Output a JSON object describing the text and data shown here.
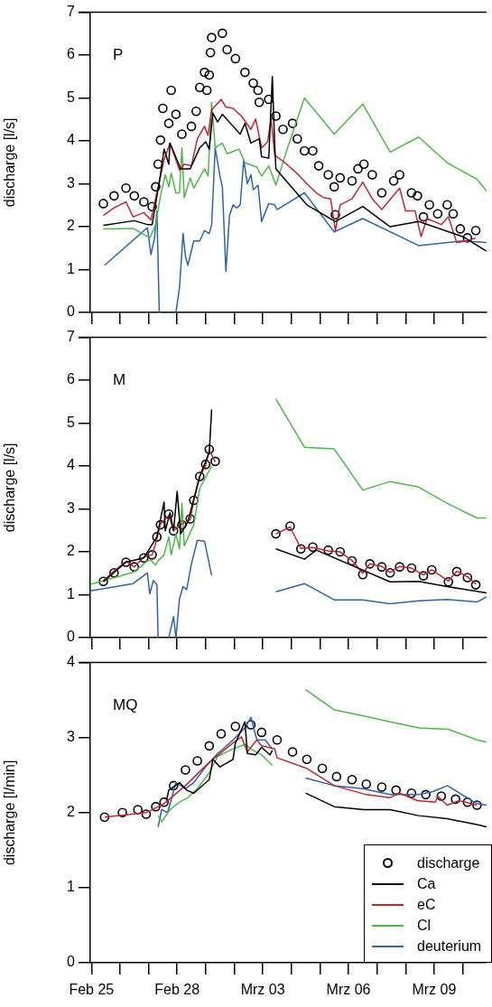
{
  "chart_data": [
    {
      "type": "line",
      "ylabel": "discharge [l/s]",
      "annotations": [
        "P"
      ],
      "xlim": [
        "--02-24T23:00",
        "--03-10T20:00"
      ],
      "ylim": [
        0,
        7
      ],
      "yticks": [
        0,
        1,
        2,
        3,
        4,
        5,
        6,
        7
      ],
      "tick_labels": "y",
      "xticks": [
        {
          "value": "--02-25",
          "label": null
        },
        {
          "value": "--02-26",
          "label": null
        },
        {
          "value": "--02-27",
          "label": null
        },
        {
          "value": "--02-28",
          "label": null
        },
        {
          "value": "--03-01",
          "label": null
        },
        {
          "value": "--03-02",
          "label": null
        },
        {
          "value": "--03-03",
          "label": null
        },
        {
          "value": "--03-04",
          "label": null
        },
        {
          "value": "--03-05",
          "label": null
        },
        {
          "value": "--03-06",
          "label": null
        },
        {
          "value": "--03-07",
          "label": null
        },
        {
          "value": "--03-08",
          "label": null
        },
        {
          "value": "--03-09",
          "label": null
        },
        {
          "value": "--03-10",
          "label": null
        }
      ],
      "series": [
        {
          "type": "scatter",
          "marker": "circle",
          "color": "#000000",
          "x": [
            "--02-25T10:00",
            "--02-25T19:00",
            "--02-26T05:00",
            "--02-26T12:00",
            "--02-26T20:00",
            "--02-27T03:00",
            "--02-27T06:00",
            "--02-27T08:00",
            "--02-27T10:00",
            "--02-27T12:00",
            "--02-27T17:00",
            "--02-27T19:00",
            "--02-27T23:00",
            "--02-28T04:00",
            "--02-28T12:00",
            "--02-28T16:00",
            "--02-28T19:00",
            "--02-28T23:00",
            "--03-01T01:00",
            "--03-01T03:00",
            "--03-01T04:00",
            "--03-01T05:00",
            "--03-01T14:00",
            "--03-01T18:00",
            "--03-02T01:00",
            "--03-02T09:00",
            "--03-02T16:00",
            "--03-02T20:00",
            "--03-02T21:00",
            "--03-03T05:00",
            "--03-03T11:00",
            "--03-03T17:00",
            "--03-04T01:00",
            "--03-04T05:00",
            "--03-04T11:00",
            "--03-04T18:00",
            "--03-04T23:00",
            "--03-05T07:00",
            "--03-05T12:00",
            "--03-05T13:00",
            "--03-05T17:00",
            "--03-06T03:00",
            "--03-06T08:00",
            "--03-06T13:00",
            "--03-06T20:00",
            "--03-07T04:00",
            "--03-07T14:00",
            "--03-07T19:00",
            "--03-08T05:00",
            "--03-08T10:00",
            "--03-08T15:00",
            "--03-08T20:00",
            "--03-09T03:00",
            "--03-09T11:00",
            "--03-09T16:00",
            "--03-09T22:00",
            "--03-10T04:00",
            "--03-10T11:00"
          ],
          "values": [
            2.54,
            2.72,
            2.9,
            2.72,
            2.58,
            2.47,
            2.93,
            3.46,
            4.02,
            4.76,
            4.41,
            5.18,
            4.62,
            4.16,
            4.34,
            4.69,
            5.25,
            5.6,
            5.18,
            5.54,
            6.06,
            6.41,
            6.51,
            6.13,
            5.92,
            5.6,
            5.35,
            5.18,
            4.9,
            4.97,
            4.58,
            4.27,
            4.41,
            4.05,
            3.77,
            3.77,
            3.42,
            3.21,
            2.93,
            2.28,
            3.14,
            3.07,
            3.35,
            3.46,
            3.21,
            2.79,
            3.07,
            3.21,
            2.79,
            2.72,
            2.23,
            2.51,
            2.3,
            2.51,
            2.3,
            1.95,
            1.74,
            1.91
          ]
        },
        {
          "color": "#000000",
          "x": [
            "--02-25T10:00",
            "--02-26T12:00",
            "--02-26T23:00",
            "--02-27T03:00",
            "--02-27T10:00",
            "--02-27T13:00",
            "--02-27T17:00",
            "--02-27T18:00",
            "--02-28T03:00",
            "--02-28T11:00",
            "--02-28T19:00",
            "--03-01T00:00",
            "--03-01T03:00",
            "--03-01T06:00",
            "--03-01T10:00",
            "--03-01T14:00",
            "--03-02T05:00",
            "--03-02T09:00",
            "--03-02T14:00",
            "--03-02T21:00",
            "--03-02T23:00",
            "--03-03T05:00",
            "--03-03T08:00",
            "--03-03T10:00",
            "--03-03T11:00",
            "--03-04T13:00",
            "--03-05T13:00",
            "--03-06T12:00",
            "--03-07T11:00",
            "--03-08T11:00",
            "--03-10T00:00",
            "--03-10T20:00"
          ],
          "values": [
            2.03,
            2.14,
            2.05,
            2.05,
            3.21,
            3.81,
            3.46,
            3.95,
            3.35,
            3.35,
            3.84,
            3.98,
            3.81,
            4.65,
            4.44,
            4.62,
            4.16,
            4.41,
            3.95,
            4.05,
            3.63,
            3.6,
            5.5,
            3.91,
            3.35,
            2.51,
            2.12,
            2.47,
            2.0,
            2.12,
            1.77,
            1.43
          ]
        },
        {
          "color": "#c1272d",
          "x": [
            "--02-25T10:00",
            "--02-25T19:00",
            "--02-26T05:00",
            "--02-26T11:00",
            "--02-26T20:00",
            "--02-27T02:00",
            "--02-27T07:00",
            "--02-27T13:00",
            "--02-27T18:00",
            "--02-28T02:00",
            "--02-28T06:00",
            "--02-28T12:00",
            "--02-28T17:00",
            "--02-28T23:00",
            "--03-01T02:00",
            "--03-01T05:00",
            "--03-01T13:00",
            "--03-01T17:00",
            "--03-01T23:00",
            "--03-02T06:00",
            "--03-02T14:00",
            "--03-02T18:00",
            "--03-02T23:00",
            "--03-03T04:00",
            "--03-03T07:00",
            "--03-03T10:00",
            "--03-03T20:00",
            "--03-04T06:00",
            "--03-04T13:00",
            "--03-04T21:00",
            "--03-05T03:00",
            "--03-05T09:00",
            "--03-05T13:00",
            "--03-05T17:00",
            "--03-06T03:00",
            "--03-06T12:00",
            "--03-06T20:00",
            "--03-07T04:00",
            "--03-07T19:00",
            "--03-08T00:00",
            "--03-08T08:00",
            "--03-08T13:00",
            "--03-08T18:00",
            "--03-09T06:00",
            "--03-09T12:00",
            "--03-09T19:00",
            "--03-10T04:00",
            "--03-10T11:00"
          ],
          "values": [
            2.26,
            2.44,
            2.58,
            2.23,
            2.33,
            2.16,
            2.79,
            3.56,
            3.95,
            3.32,
            3.46,
            3.42,
            4.05,
            4.34,
            4.13,
            4.72,
            4.97,
            4.79,
            4.76,
            4.58,
            4.27,
            4.51,
            3.84,
            3.98,
            4.51,
            3.67,
            3.46,
            3.21,
            3.0,
            2.79,
            2.68,
            2.65,
            1.91,
            2.51,
            2.65,
            3.04,
            2.65,
            2.4,
            2.9,
            2.37,
            2.37,
            1.77,
            2.19,
            2.05,
            2.23,
            1.63,
            1.67,
            1.74
          ]
        },
        {
          "color": "#4db848",
          "x": [
            "--02-25T10:00",
            "--02-26T11:00",
            "--02-27T01:00",
            "--02-27T06:00",
            "--02-27T10:00",
            "--02-27T14:00",
            "--02-27T17:00",
            "--02-27T19:00",
            "--02-27T23:00",
            "--02-28T02:00",
            "--02-28T04:00",
            "--02-28T06:00",
            "--02-28T11:00",
            "--02-28T14:00",
            "--02-28T23:00",
            "--03-01T02:00",
            "--03-01T05:00",
            "--03-01T08:00",
            "--03-01T14:00",
            "--03-01T18:00",
            "--03-02T04:00",
            "--03-02T09:00",
            "--03-02T19:00",
            "--03-02T23:00",
            "--03-03T05:00",
            "--03-03T11:00",
            "--03-03T20:00",
            "--03-04T11:00",
            "--03-05T12:00",
            "--03-06T12:00",
            "--03-07T11:00",
            "--03-08T11:00",
            "--03-09T11:00",
            "--03-10T12:00",
            "--03-10T20:00"
          ],
          "values": [
            1.95,
            1.96,
            1.74,
            2.05,
            2.72,
            3.21,
            2.93,
            3.25,
            2.79,
            2.79,
            3.84,
            2.68,
            3.14,
            2.9,
            3.35,
            3.18,
            4.9,
            3.84,
            3.95,
            3.7,
            3.81,
            3.49,
            3.39,
            3.18,
            3.42,
            2.97,
            3.77,
            5.0,
            4.16,
            4.86,
            3.74,
            4.09,
            3.49,
            3.11,
            2.83
          ]
        },
        {
          "color": "#2c63b5",
          "x": [
            "--02-25T11:00",
            "--02-26T23:00",
            "--02-27T02:00",
            "--02-27T05:00",
            "--02-27T07:00",
            "--02-27T09:00",
            "--02-27T14:00",
            "--02-27T23:00",
            "--02-28T02:00",
            "--02-28T05:00",
            "--02-28T07:00",
            "--02-28T09:00",
            "--02-28T14:00",
            "--02-28T19:00",
            "--02-28T23:00",
            "--03-01T03:00",
            "--03-01T05:00",
            "--03-01T08:00",
            "--03-01T12:00",
            "--03-01T14:00",
            "--03-01T17:00",
            "--03-01T20:00",
            "--03-01T23:00",
            "--03-02T02:00",
            "--03-02T05:00",
            "--03-02T08:00",
            "--03-02T11:00",
            "--03-02T14:00",
            "--03-02T16:00",
            "--03-02T20:00",
            "--03-02T23:00",
            "--03-03T05:00",
            "--03-03T10:00",
            "--03-03T12:00",
            "--03-04T11:00",
            "--03-05T12:00",
            "--03-06T12:00",
            "--03-08T11:00",
            "--03-10T00:00",
            "--03-10T20:00"
          ],
          "values": [
            1.1,
            1.98,
            1.35,
            1.74,
            2.37,
            0,
            null,
            0,
            0.58,
            1.84,
            1.31,
            1.1,
            1.67,
            1.67,
            1.91,
            1.84,
            2.05,
            3.84,
            3.18,
            2.93,
            0.96,
            2.26,
            2.51,
            2.44,
            2.51,
            3.56,
            3.0,
            3.21,
            2.86,
            2.97,
            2.12,
            2.54,
            2.51,
            2.4,
            2.79,
            1.88,
            2.19,
            1.56,
            1.67,
            1.63
          ]
        }
      ]
    },
    {
      "type": "line",
      "ylabel": "discharge [l/s]",
      "annotations": [
        "M"
      ],
      "xlim": [
        "--02-24T23:00",
        "--03-10T20:00"
      ],
      "ylim": [
        0,
        7
      ],
      "yticks": [
        0,
        1,
        2,
        3,
        4,
        5,
        6,
        7
      ],
      "tick_labels": "y",
      "xticks": [
        {
          "value": "--02-25",
          "label": null
        },
        {
          "value": "--02-26",
          "label": null
        },
        {
          "value": "--02-27",
          "label": null
        },
        {
          "value": "--02-28",
          "label": null
        },
        {
          "value": "--03-01",
          "label": null
        },
        {
          "value": "--03-02",
          "label": null
        },
        {
          "value": "--03-03",
          "label": null
        },
        {
          "value": "--03-04",
          "label": null
        },
        {
          "value": "--03-05",
          "label": null
        },
        {
          "value": "--03-06",
          "label": null
        },
        {
          "value": "--03-07",
          "label": null
        },
        {
          "value": "--03-08",
          "label": null
        },
        {
          "value": "--03-09",
          "label": null
        },
        {
          "value": "--03-10",
          "label": null
        }
      ],
      "series": [
        {
          "type": "scatter",
          "marker": "circle",
          "color": "#000000",
          "x": [
            "--02-25T10:00",
            "--02-25T19:00",
            "--02-26T05:00",
            "--02-26T12:00",
            "--02-26T20:00",
            "--02-27T03:00",
            "--02-27T07:00",
            "--02-27T10:00",
            "--02-27T17:00",
            "--02-27T21:00",
            "--02-28T04:00",
            "--02-28T11:00",
            "--02-28T14:00",
            "--02-28T19:00",
            "--03-01T00:00",
            "--03-01T03:00",
            "--03-01T08:00",
            "--03-03T11:00",
            "--03-03T23:00",
            "--03-04T08:00",
            "--03-04T18:00",
            "--03-05T07:00",
            "--03-05T17:00",
            "--03-06T03:00",
            "--03-06T12:00",
            "--03-06T18:00",
            "--03-07T04:00",
            "--03-07T11:00",
            "--03-07T19:00",
            "--03-08T05:00",
            "--03-08T15:00",
            "--03-08T22:00",
            "--03-09T12:00",
            "--03-09T19:00",
            "--03-10T04:00",
            "--03-10T11:00"
          ],
          "values": [
            1.31,
            1.51,
            1.76,
            1.65,
            1.86,
            1.93,
            2.35,
            2.63,
            2.88,
            2.49,
            2.63,
            2.77,
            3.2,
            3.76,
            4.04,
            4.39,
            4.11,
            2.42,
            2.6,
            2.07,
            2.11,
            2.04,
            2.0,
            1.79,
            1.47,
            1.72,
            1.65,
            1.51,
            1.65,
            1.62,
            1.44,
            1.58,
            1.3,
            1.54,
            1.4,
            1.23
          ]
        },
        {
          "color": "#000000",
          "x": [
            "--02-25T10:00",
            "--02-26T05:00",
            "--02-26T20:00",
            "--02-27T07:00",
            "--02-27T13:00",
            "--02-27T14:00",
            "--02-27T18:00",
            "--02-27T21:00",
            "--02-28T00:00",
            "--02-28T03:00",
            "--02-28T09:00",
            "--02-28T19:00",
            "--03-01T03:00",
            "--03-01T05:00",
            "--03-02T12:00",
            "--03-03T11:00",
            "--03-04T11:00",
            "--03-04T21:00",
            "--03-07T11:00",
            "--03-08T11:00",
            "--03-09T11:00",
            "--03-10T20:00"
          ],
          "values": [
            1.3,
            1.76,
            1.86,
            2.35,
            3.16,
            2.49,
            2.91,
            2.49,
            3.41,
            2.42,
            2.7,
            3.76,
            4.32,
            5.32,
            null,
            2.07,
            1.83,
            2.04,
            1.3,
            1.31,
            1.19,
            1.04
          ]
        },
        {
          "color": "#c1272d",
          "x": [
            "--02-25T10:00",
            "--02-25T19:00",
            "--02-26T05:00",
            "--02-26T12:00",
            "--02-26T20:00",
            "--02-27T03:00",
            "--02-27T07:00",
            "--02-27T10:00",
            "--02-27T17:00",
            "--02-27T21:00",
            "--02-28T04:00",
            "--02-28T11:00",
            "--02-28T14:00",
            "--02-28T19:00",
            "--03-01T00:00",
            "--03-01T03:00",
            "--03-01T08:00",
            "--03-02T12:00",
            "--03-03T11:00",
            "--03-03T23:00",
            "--03-04T08:00",
            "--03-04T18:00",
            "--03-05T07:00",
            "--03-05T17:00",
            "--03-06T03:00",
            "--03-06T12:00",
            "--03-06T18:00",
            "--03-07T04:00",
            "--03-07T11:00",
            "--03-07T19:00",
            "--03-08T05:00",
            "--03-08T15:00",
            "--03-08T22:00",
            "--03-09T12:00",
            "--03-09T19:00",
            "--03-10T04:00",
            "--03-10T11:00"
          ],
          "values": [
            1.33,
            1.55,
            1.78,
            1.65,
            1.88,
            1.93,
            2.3,
            2.65,
            2.85,
            2.5,
            2.65,
            2.75,
            3.2,
            3.76,
            4.02,
            4.37,
            4.1,
            null,
            2.42,
            2.58,
            2.08,
            2.1,
            2.02,
            2.0,
            1.8,
            1.5,
            1.72,
            1.66,
            1.52,
            1.66,
            1.62,
            1.46,
            1.58,
            1.32,
            1.55,
            1.42,
            1.25
          ]
        },
        {
          "color": "#4db848",
          "x": [
            "--02-24T23:00",
            "--02-26T11:00",
            "--02-27T01:00",
            "--02-27T06:00",
            "--02-27T08:00",
            "--02-27T13:00",
            "--02-27T17:00",
            "--02-27T19:00",
            "--02-27T23:00",
            "--02-28T02:00",
            "--02-28T04:00",
            "--02-28T06:00",
            "--02-28T14:00",
            "--02-28T19:00",
            "--03-01T05:00",
            "--03-02T12:00",
            "--03-03T11:00",
            "--03-04T11:00",
            "--03-05T12:00",
            "--03-06T12:00",
            "--03-07T11:00",
            "--03-08T11:00",
            "--03-09T11:00",
            "--03-10T12:00",
            "--03-10T20:00"
          ],
          "values": [
            1.24,
            1.52,
            1.83,
            1.69,
            1.79,
            1.93,
            2.35,
            1.93,
            2.42,
            2.07,
            3.13,
            2.14,
            2.63,
            3.48,
            4.0,
            null,
            5.56,
            4.44,
            4.4,
            3.44,
            3.64,
            3.51,
            3.13,
            2.79,
            2.79
          ]
        },
        {
          "color": "#2c63b5",
          "x": [
            "--02-24T23:00",
            "--02-26T11:00",
            "--02-26T23:00",
            "--02-27T01:00",
            "--02-27T04:00",
            "--02-27T07:00",
            "--02-27T08:00",
            "--02-27T12:00",
            "--02-27T17:00",
            "--02-27T21:00",
            "--02-27T23:00",
            "--02-28T02:00",
            "--02-28T05:00",
            "--02-28T08:00",
            "--02-28T12:00",
            "--02-28T17:00",
            "--02-28T23:00",
            "--03-01T05:00",
            "--03-02T12:00",
            "--03-03T11:00",
            "--03-04T11:00",
            "--03-05T12:00",
            "--03-06T12:00",
            "--03-07T11:00",
            "--03-08T11:00",
            "--03-09T11:00",
            "--03-10T12:00",
            "--03-10T20:00"
          ],
          "values": [
            1.09,
            1.26,
            1.51,
            1.02,
            1.33,
            1.23,
            0,
            null,
            0,
            0.49,
            0,
            0.91,
            1.19,
            1.12,
            1.72,
            2.27,
            2.25,
            1.45,
            null,
            1.07,
            1.26,
            0.88,
            0.88,
            0.79,
            0.86,
            0.89,
            0.83,
            0.95
          ]
        }
      ]
    },
    {
      "type": "line",
      "ylabel": "discharge [l/min]",
      "annotations": [
        "MQ"
      ],
      "legend": "bottom right",
      "xlim": [
        "--02-24T23:00",
        "--03-10T20:00"
      ],
      "ylim": [
        0,
        4
      ],
      "yticks": [
        0,
        1,
        2,
        3,
        4
      ],
      "xticks": [
        {
          "value": "--02-25",
          "label": "Feb 25"
        },
        {
          "value": "--02-26",
          "label": null
        },
        {
          "value": "--02-27",
          "label": null
        },
        {
          "value": "--02-28",
          "label": "Feb 28"
        },
        {
          "value": "--03-01",
          "label": null
        },
        {
          "value": "--03-02",
          "label": null
        },
        {
          "value": "--03-03",
          "label": "Mrz 03"
        },
        {
          "value": "--03-04",
          "label": null
        },
        {
          "value": "--03-05",
          "label": null
        },
        {
          "value": "--03-06",
          "label": "Mrz 06"
        },
        {
          "value": "--03-07",
          "label": null
        },
        {
          "value": "--03-08",
          "label": null
        },
        {
          "value": "--03-09",
          "label": "Mrz 09"
        },
        {
          "value": "--03-10",
          "label": null
        }
      ],
      "series": [
        {
          "type": "scatter",
          "name": "discharge",
          "marker": "circle",
          "color": "#000000",
          "x": [
            "--02-25T11:00",
            "--02-26T02:00",
            "--02-26T15:00",
            "--02-26T22:00",
            "--02-27T06:00",
            "--02-27T13:00",
            "--02-27T21:00",
            "--02-28T07:00",
            "--02-28T17:00",
            "--03-01T03:00",
            "--03-01T13:00",
            "--03-02T01:00",
            "--03-02T14:00",
            "--03-02T23:00",
            "--03-03T12:00",
            "--03-04T01:00",
            "--03-04T13:00",
            "--03-05T02:00",
            "--03-05T14:00",
            "--03-06T03:00",
            "--03-06T15:00",
            "--03-07T04:00",
            "--03-07T16:00",
            "--03-08T05:00",
            "--03-08T17:00",
            "--03-09T06:00",
            "--03-09T18:00",
            "--03-10T04:00",
            "--03-10T12:00"
          ],
          "values": [
            1.94,
            2.0,
            2.04,
            1.98,
            2.08,
            2.14,
            2.36,
            2.57,
            2.69,
            2.89,
            3.05,
            3.15,
            3.17,
            3.07,
            2.97,
            2.81,
            2.71,
            2.59,
            2.48,
            2.44,
            2.38,
            2.34,
            2.3,
            2.26,
            2.24,
            2.22,
            2.18,
            2.14,
            2.1
          ]
        },
        {
          "name": "Ca",
          "color": "#000000",
          "x": [
            "--02-27T15:00",
            "--02-27T17:00",
            "--02-28T02:00",
            "--02-28T08:00",
            "--02-28T14:00",
            "--03-01T03:00",
            "--03-01T06:00",
            "--03-01T12:00",
            "--03-01T23:00",
            "--03-02T01:00",
            "--03-02T09:00",
            "--03-02T11:00",
            "--03-02T18:00",
            "--03-02T23:00",
            "--03-03T06:00",
            "--03-03T08:00",
            "--03-03T20:00",
            "--03-04T12:00",
            "--03-05T12:00",
            "--03-06T13:00",
            "--03-07T11:00",
            "--03-08T11:00",
            "--03-09T11:00",
            "--03-10T12:00",
            "--03-10T20:00"
          ],
          "values": [
            2.16,
            2.3,
            2.4,
            2.3,
            2.26,
            2.44,
            2.71,
            2.61,
            2.71,
            2.93,
            3.21,
            2.79,
            2.77,
            2.87,
            2.77,
            2.83,
            null,
            2.26,
            2.08,
            2.04,
            2.04,
            1.96,
            1.92,
            1.84,
            1.81
          ]
        },
        {
          "name": "eC",
          "color": "#c1272d",
          "x": [
            "--02-25T11:00",
            "--02-26T22:00",
            "--02-27T13:00",
            "--02-28T07:00",
            "--03-01T03:00",
            "--03-01T23:00",
            "--03-02T06:00",
            "--03-02T11:00",
            "--03-02T19:00",
            "--03-02T23:00",
            "--03-03T10:00",
            "--03-03T12:00",
            "--03-04T13:00",
            "--03-05T12:00",
            "--03-06T15:00",
            "--03-07T11:00",
            "--03-07T19:00",
            "--03-08T10:00",
            "--03-09T01:00",
            "--03-09T03:00",
            "--03-09T11:00",
            "--03-09T21:00",
            "--03-10T12:00"
          ],
          "values": [
            1.94,
            2.0,
            2.12,
            2.36,
            2.67,
            2.93,
            3.01,
            2.81,
            2.97,
            2.89,
            2.85,
            2.73,
            2.59,
            2.36,
            2.24,
            2.2,
            2.26,
            2.16,
            2.14,
            2.22,
            2.1,
            2.16,
            2.1
          ]
        },
        {
          "name": "Cl",
          "color": "#4db848",
          "x": [
            "--02-27T08:00",
            "--02-27T11:00",
            "--02-27T18:00",
            "--02-28T02:00",
            "--02-28T09:00",
            "--02-28T17:00",
            "--03-01T03:00",
            "--03-01T10:00",
            "--03-01T23:00",
            "--03-02T09:00",
            "--03-02T16:00",
            "--03-02T23:00",
            "--03-03T08:00",
            "--03-03T20:00",
            "--03-04T12:00",
            "--03-05T12:00",
            "--03-06T12:00",
            "--03-07T11:00",
            "--03-08T11:00",
            "--03-09T12:00",
            "--03-10T12:00",
            "--03-10T20:00"
          ],
          "values": [
            1.96,
            1.88,
            2.04,
            2.14,
            2.2,
            2.32,
            2.53,
            2.75,
            2.85,
            2.91,
            2.83,
            2.77,
            2.63,
            null,
            3.64,
            3.37,
            3.29,
            3.21,
            3.13,
            3.11,
            2.97,
            2.94
          ]
        },
        {
          "name": "deuterium",
          "color": "#2c63b5",
          "x": [
            "--02-27T08:00",
            "--02-27T11:00",
            "--02-27T16:00",
            "--02-27T23:00",
            "--02-28T07:00",
            "--02-28T14:00",
            "--03-01T00:00",
            "--03-01T09:00",
            "--03-01T23:00",
            "--03-02T09:00",
            "--03-02T14:00",
            "--03-02T19:00",
            "--03-03T02:00",
            "--03-03T08:00",
            "--03-03T20:00",
            "--03-04T12:00",
            "--03-05T12:00",
            "--03-06T12:00",
            "--03-07T11:00",
            "--03-08T11:00",
            "--03-08T23:00",
            "--03-09T11:00",
            "--03-10T12:00",
            "--03-10T20:00"
          ],
          "values": [
            1.81,
            2.04,
            2.0,
            2.4,
            2.32,
            2.4,
            2.61,
            2.77,
            2.97,
            3.13,
            3.27,
            2.97,
            2.97,
            2.85,
            null,
            2.46,
            2.36,
            2.32,
            2.24,
            2.24,
            2.28,
            2.36,
            2.12,
            2.1
          ]
        }
      ]
    }
  ]
}
